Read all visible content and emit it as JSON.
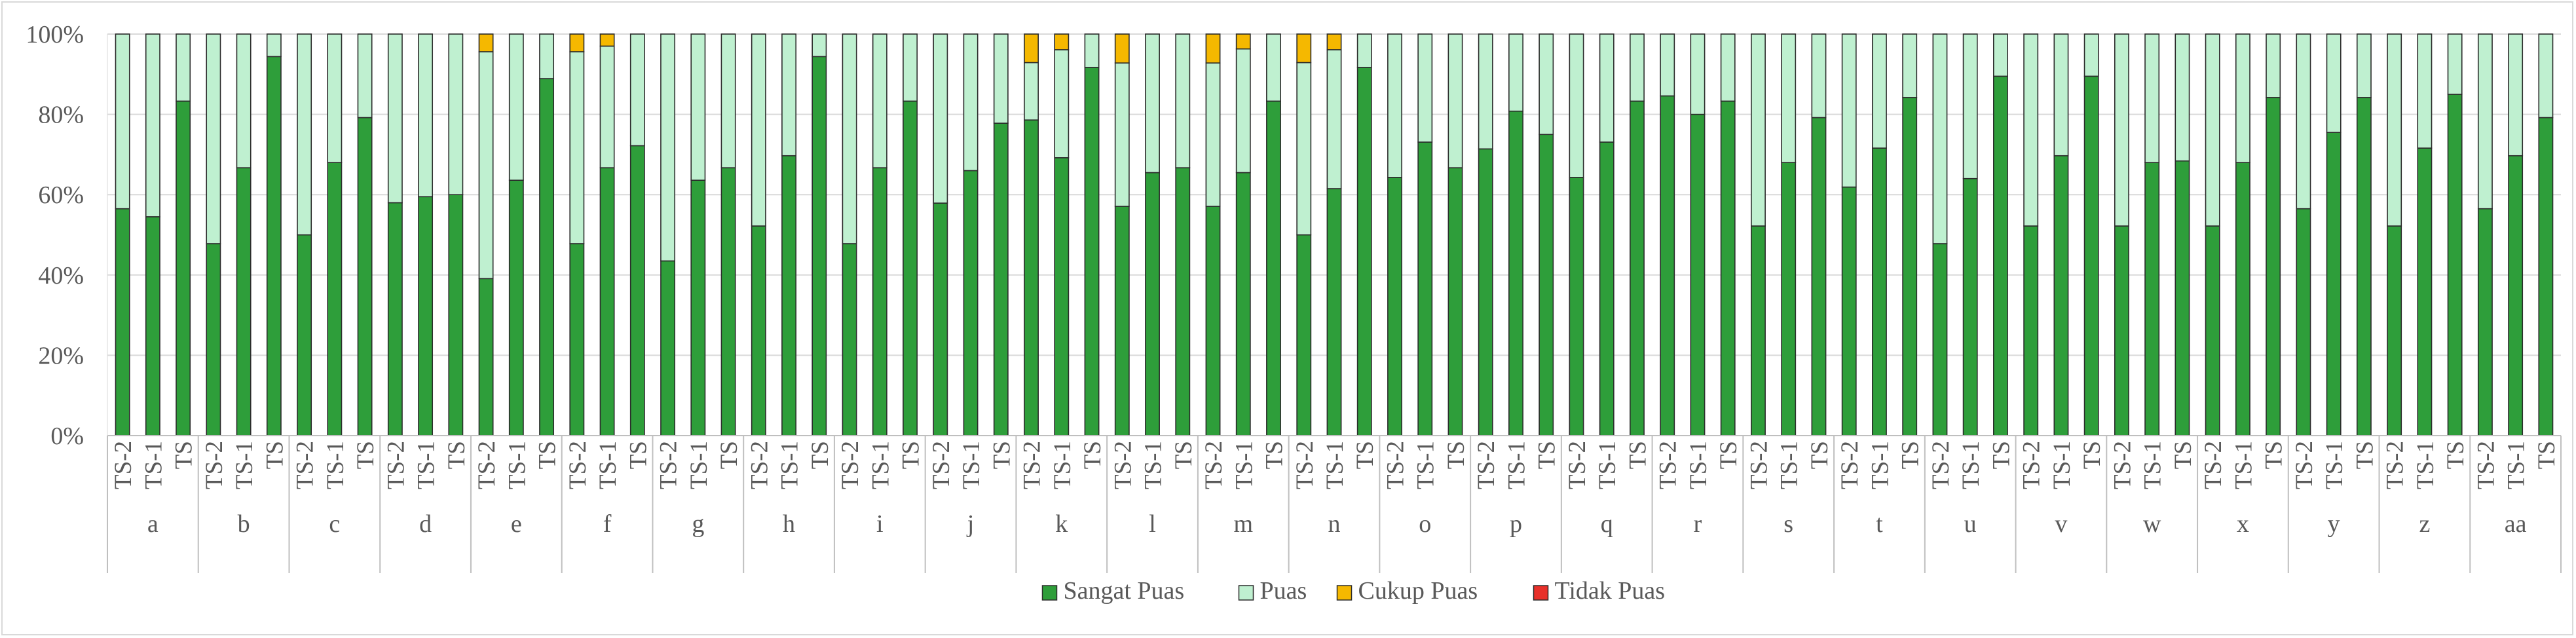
{
  "chart_data": {
    "type": "bar",
    "stacked": true,
    "percent": true,
    "y_ticks": [
      "0%",
      "20%",
      "40%",
      "60%",
      "80%",
      "100%"
    ],
    "ylim": [
      0,
      100
    ],
    "grid": true,
    "legend_position": "bottom",
    "groups": [
      "a",
      "b",
      "c",
      "d",
      "e",
      "f",
      "g",
      "h",
      "i",
      "j",
      "k",
      "l",
      "m",
      "n",
      "o",
      "p",
      "q",
      "r",
      "s",
      "t",
      "u",
      "v",
      "w",
      "x",
      "y",
      "z",
      "aa"
    ],
    "subcategories": [
      "TS-2",
      "TS-1",
      "TS"
    ],
    "series": [
      {
        "name": "Sangat Puas",
        "color": "#2e9e3a",
        "values": [
          [
            56.5,
            54.5,
            83.3
          ],
          [
            47.8,
            66.7,
            94.4
          ],
          [
            50.0,
            68.0,
            79.2
          ],
          [
            58.0,
            59.5,
            60.0
          ],
          [
            39.1,
            63.6,
            88.9
          ],
          [
            47.8,
            66.7,
            72.2
          ],
          [
            43.5,
            63.6,
            66.7
          ],
          [
            52.2,
            69.7,
            94.4
          ],
          [
            47.8,
            66.7,
            83.3
          ],
          [
            57.9,
            66.0,
            77.8
          ],
          [
            78.6,
            69.2,
            91.7
          ],
          [
            57.1,
            65.5,
            66.7
          ],
          [
            57.1,
            65.5,
            83.3
          ],
          [
            50.0,
            61.5,
            91.7
          ],
          [
            64.3,
            73.1,
            66.7
          ],
          [
            71.4,
            80.8,
            75.0
          ],
          [
            64.3,
            73.1,
            83.3
          ],
          [
            84.6,
            80.0,
            83.3
          ],
          [
            52.2,
            68.0,
            79.2
          ],
          [
            61.9,
            71.6,
            84.2
          ],
          [
            47.8,
            64.0,
            89.5
          ],
          [
            52.2,
            69.7,
            89.5
          ],
          [
            52.2,
            68.0,
            68.4
          ],
          [
            52.2,
            68.0,
            84.2
          ],
          [
            56.5,
            75.5,
            84.2
          ],
          [
            52.2,
            71.6,
            85.0
          ],
          [
            56.5,
            69.7,
            79.2
          ]
        ]
      },
      {
        "name": "Puas",
        "color": "#bff0d0",
        "values": [
          [
            43.5,
            45.5,
            16.7
          ],
          [
            52.2,
            33.3,
            5.6
          ],
          [
            50.0,
            32.0,
            20.8
          ],
          [
            42.0,
            40.5,
            40.0
          ],
          [
            56.5,
            36.4,
            11.1
          ],
          [
            47.8,
            30.3,
            27.8
          ],
          [
            56.5,
            36.4,
            33.3
          ],
          [
            47.8,
            30.3,
            5.6
          ],
          [
            52.2,
            33.3,
            16.7
          ],
          [
            42.1,
            34.0,
            22.2
          ],
          [
            14.3,
            26.9,
            8.3
          ],
          [
            35.7,
            34.5,
            33.3
          ],
          [
            35.7,
            30.8,
            16.7
          ],
          [
            42.9,
            34.6,
            8.3
          ],
          [
            35.7,
            26.9,
            33.3
          ],
          [
            28.6,
            19.2,
            25.0
          ],
          [
            35.7,
            26.9,
            16.7
          ],
          [
            15.4,
            20.0,
            16.7
          ],
          [
            47.8,
            32.0,
            20.8
          ],
          [
            38.1,
            28.4,
            15.8
          ],
          [
            52.2,
            36.0,
            10.5
          ],
          [
            47.8,
            30.3,
            10.5
          ],
          [
            47.8,
            32.0,
            31.6
          ],
          [
            47.8,
            32.0,
            15.8
          ],
          [
            43.5,
            24.5,
            15.8
          ],
          [
            47.8,
            28.4,
            15.0
          ],
          [
            43.5,
            30.3,
            20.8
          ]
        ]
      },
      {
        "name": "Cukup Puas",
        "color": "#f5b800",
        "values": [
          [
            0,
            0,
            0
          ],
          [
            0,
            0,
            0
          ],
          [
            0,
            0,
            0
          ],
          [
            0,
            0,
            0
          ],
          [
            4.4,
            0,
            0
          ],
          [
            4.4,
            3.0,
            0
          ],
          [
            0,
            0,
            0
          ],
          [
            0,
            0,
            0
          ],
          [
            0,
            0,
            0
          ],
          [
            0,
            0,
            0
          ],
          [
            7.1,
            3.9,
            0
          ],
          [
            7.2,
            0,
            0
          ],
          [
            7.2,
            3.7,
            0
          ],
          [
            7.1,
            3.9,
            0
          ],
          [
            0,
            0,
            0
          ],
          [
            0,
            0,
            0
          ],
          [
            0,
            0,
            0
          ],
          [
            0,
            0,
            0
          ],
          [
            0,
            0,
            0
          ],
          [
            0,
            0,
            0
          ],
          [
            0,
            0,
            0
          ],
          [
            0,
            0,
            0
          ],
          [
            0,
            0,
            0
          ],
          [
            0,
            0,
            0
          ],
          [
            0,
            0,
            0
          ],
          [
            0,
            0,
            0
          ],
          [
            0,
            0,
            0
          ]
        ]
      },
      {
        "name": "Tidak Puas",
        "color": "#e8302a",
        "values": [
          [
            0,
            0,
            0
          ],
          [
            0,
            0,
            0
          ],
          [
            0,
            0,
            0
          ],
          [
            0,
            0,
            0
          ],
          [
            0,
            0,
            0
          ],
          [
            0,
            0,
            0
          ],
          [
            0,
            0,
            0
          ],
          [
            0,
            0,
            0
          ],
          [
            0,
            0,
            0
          ],
          [
            0,
            0,
            0
          ],
          [
            0,
            0,
            0
          ],
          [
            0,
            0,
            0
          ],
          [
            0,
            0,
            0
          ],
          [
            0,
            0,
            0
          ],
          [
            0,
            0,
            0
          ],
          [
            0,
            0,
            0
          ],
          [
            0,
            0,
            0
          ],
          [
            0,
            0,
            0
          ],
          [
            0,
            0,
            0
          ],
          [
            0,
            0,
            0
          ],
          [
            0,
            0,
            0
          ],
          [
            0,
            0,
            0
          ],
          [
            0,
            0,
            0
          ],
          [
            0,
            0,
            0
          ],
          [
            0,
            0,
            0
          ],
          [
            0,
            0,
            0
          ],
          [
            0,
            0,
            0
          ]
        ]
      }
    ]
  }
}
